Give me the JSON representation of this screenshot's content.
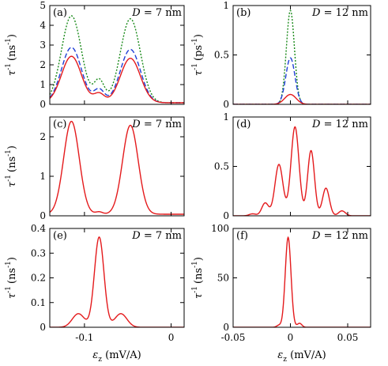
{
  "colors": {
    "red": "#e41a1c",
    "blue": "#1f3fd6",
    "green": "#1a8a1a"
  },
  "chart_data": [
    {
      "type": "line",
      "panel": "(a)",
      "annotation": {
        "var": "D",
        "value": " = 7 nm"
      },
      "ylabel": {
        "base": "τ",
        "sup": "-1",
        "unit": "(ns",
        "unit_sup": "-1",
        "close": ")"
      },
      "xlim": [
        -0.14,
        0.015
      ],
      "ylim": [
        0,
        5
      ],
      "xticks": [
        -0.1,
        0
      ],
      "yticks": [
        0,
        1,
        2,
        3,
        4,
        5
      ],
      "xtick_labels": [],
      "ytick_labels": [
        "0",
        "1",
        "2",
        "3",
        "4",
        "5"
      ],
      "series": [
        {
          "color": "green",
          "dash": "2,2",
          "peaks": [
            [
              -0.115,
              4.4,
              0.0115
            ],
            [
              -0.083,
              1.1,
              0.006
            ],
            [
              -0.047,
              4.25,
              0.0115
            ]
          ],
          "baseline": 0.08
        },
        {
          "color": "blue",
          "dash": "6,3",
          "peaks": [
            [
              -0.115,
              2.8,
              0.0115
            ],
            [
              -0.083,
              0.65,
              0.006
            ],
            [
              -0.047,
              2.7,
              0.0115
            ]
          ],
          "baseline": 0.08
        },
        {
          "color": "red",
          "dash": "",
          "peaks": [
            [
              -0.115,
              2.35,
              0.0115
            ],
            [
              -0.083,
              0.45,
              0.006
            ],
            [
              -0.047,
              2.25,
              0.0115
            ]
          ],
          "baseline": 0.08
        }
      ]
    },
    {
      "type": "line",
      "panel": "(b)",
      "annotation": {
        "var": "D",
        "value": " = 12 nm"
      },
      "ylabel": {
        "base": "τ",
        "sup": "-1",
        "unit": "(ps",
        "unit_sup": "-1",
        "close": ")"
      },
      "xlim": [
        -0.05,
        0.07
      ],
      "ylim": [
        0,
        1
      ],
      "xticks": [
        -0.05,
        0,
        0.05
      ],
      "yticks": [
        0,
        0.5,
        1
      ],
      "xtick_labels": [],
      "ytick_labels": [
        "0",
        "0.5",
        "1"
      ],
      "series": [
        {
          "color": "green",
          "dash": "2,2",
          "peaks": [
            [
              0.0,
              0.95,
              0.0035
            ]
          ],
          "baseline": 0.0
        },
        {
          "color": "blue",
          "dash": "6,3",
          "peaks": [
            [
              0.0,
              0.47,
              0.004
            ]
          ],
          "baseline": 0.0
        },
        {
          "color": "red",
          "dash": "",
          "peaks": [
            [
              0.0,
              0.1,
              0.005
            ]
          ],
          "baseline": 0.0
        }
      ]
    },
    {
      "type": "line",
      "panel": "(c)",
      "annotation": {
        "var": "D",
        "value": " = 7 nm"
      },
      "ylabel": {
        "base": "τ",
        "sup": "-1",
        "unit": "(ns",
        "unit_sup": "-1",
        "close": ")"
      },
      "xlim": [
        -0.14,
        0.015
      ],
      "ylim": [
        0,
        2.5
      ],
      "xticks": [
        -0.1,
        0
      ],
      "yticks": [
        0,
        1,
        2
      ],
      "xtick_labels": [],
      "ytick_labels": [
        "0",
        "1",
        "2"
      ],
      "series": [
        {
          "color": "red",
          "dash": "",
          "peaks": [
            [
              -0.115,
              2.35,
              0.009
            ],
            [
              -0.047,
              2.25,
              0.009
            ],
            [
              -0.083,
              0.06,
              0.004
            ]
          ],
          "baseline": 0.04
        }
      ]
    },
    {
      "type": "line",
      "panel": "(d)",
      "annotation": {
        "var": "D",
        "value": " = 12 nm"
      },
      "ylabel": {
        "base": "",
        "sup": "",
        "unit": "",
        "unit_sup": "",
        "close": ""
      },
      "xlim": [
        -0.05,
        0.07
      ],
      "ylim": [
        0,
        1
      ],
      "xticks": [
        -0.05,
        0,
        0.05
      ],
      "yticks": [
        0,
        0.5,
        1
      ],
      "xtick_labels": [],
      "ytick_labels": [
        "0",
        "0.5",
        "1"
      ],
      "series": [
        {
          "color": "red",
          "dash": "",
          "peaks": [
            [
              -0.033,
              0.02,
              0.003
            ],
            [
              -0.022,
              0.13,
              0.003
            ],
            [
              -0.01,
              0.52,
              0.0035
            ],
            [
              0.004,
              0.9,
              0.0035
            ],
            [
              0.018,
              0.66,
              0.003
            ],
            [
              0.031,
              0.28,
              0.003
            ],
            [
              0.045,
              0.05,
              0.003
            ]
          ],
          "baseline": 0.0
        }
      ]
    },
    {
      "type": "line",
      "panel": "(e)",
      "annotation": {
        "var": "D",
        "value": " = 7 nm"
      },
      "ylabel": {
        "base": "τ",
        "sup": "-1",
        "unit": "(ns",
        "unit_sup": "-1",
        "close": ")"
      },
      "xlim": [
        -0.14,
        0.015
      ],
      "ylim": [
        0,
        0.4
      ],
      "xticks": [
        -0.1,
        0
      ],
      "yticks": [
        0,
        0.1,
        0.2,
        0.3,
        0.4
      ],
      "xtick_labels": [
        "-0.1",
        "0"
      ],
      "ytick_labels": [
        "0",
        "0.1",
        "0.2",
        "0.3",
        "0.4"
      ],
      "xlabel": {
        "base": "ε",
        "sub": "z",
        "unit": " (mV/A)"
      },
      "series": [
        {
          "color": "red",
          "dash": "",
          "peaks": [
            [
              -0.083,
              0.365,
              0.0055
            ],
            [
              -0.107,
              0.055,
              0.007
            ],
            [
              -0.058,
              0.055,
              0.007
            ]
          ],
          "baseline": 0.0
        }
      ]
    },
    {
      "type": "line",
      "panel": "(f)",
      "annotation": {
        "var": "D",
        "value": " = 12 nm"
      },
      "ylabel": {
        "base": "τ",
        "sup": "-1",
        "unit": "(ns",
        "unit_sup": "-1",
        "close": ")"
      },
      "xlim": [
        -0.05,
        0.07
      ],
      "ylim": [
        0,
        100
      ],
      "xticks": [
        -0.05,
        0,
        0.05
      ],
      "yticks": [
        0,
        50,
        100
      ],
      "xtick_labels": [
        "-0.05",
        "0",
        "0.05"
      ],
      "ytick_labels": [
        "0",
        "50",
        "100"
      ],
      "xlabel": {
        "base": "ε",
        "sub": "z",
        "unit": " (mV/A)"
      },
      "series": [
        {
          "color": "red",
          "dash": "",
          "peaks": [
            [
              -0.002,
              91,
              0.0025
            ],
            [
              0.008,
              4,
              0.002
            ],
            [
              -0.01,
              2,
              0.002
            ]
          ],
          "baseline": 0.0
        }
      ]
    }
  ]
}
